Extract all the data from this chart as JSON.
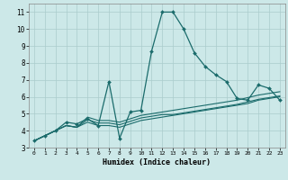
{
  "xlabel": "Humidex (Indice chaleur)",
  "background_color": "#cce8e8",
  "grid_color": "#aacccc",
  "line_color": "#1a6b6b",
  "xlim": [
    -0.5,
    23.5
  ],
  "ylim": [
    3,
    11.5
  ],
  "yticks": [
    3,
    4,
    5,
    6,
    7,
    8,
    9,
    10,
    11
  ],
  "xticks": [
    0,
    1,
    2,
    3,
    4,
    5,
    6,
    7,
    8,
    9,
    10,
    11,
    12,
    13,
    14,
    15,
    16,
    17,
    18,
    19,
    20,
    21,
    22,
    23
  ],
  "series": [
    [
      3.4,
      3.7,
      4.0,
      4.5,
      4.4,
      4.7,
      4.3,
      6.9,
      3.55,
      5.1,
      5.2,
      8.7,
      11.0,
      11.0,
      10.0,
      8.6,
      7.8,
      7.3,
      6.9,
      5.9,
      5.8,
      6.7,
      6.5,
      5.8
    ],
    [
      3.4,
      3.7,
      4.0,
      4.3,
      4.2,
      4.8,
      4.6,
      4.6,
      4.5,
      4.7,
      4.9,
      5.0,
      5.1,
      5.2,
      5.3,
      5.4,
      5.5,
      5.6,
      5.7,
      5.8,
      5.95,
      6.1,
      6.2,
      6.3
    ],
    [
      3.4,
      3.7,
      4.0,
      4.3,
      4.2,
      4.65,
      4.45,
      4.45,
      4.35,
      4.55,
      4.75,
      4.85,
      4.95,
      4.95,
      5.05,
      5.15,
      5.25,
      5.35,
      5.45,
      5.55,
      5.7,
      5.85,
      5.95,
      6.05
    ],
    [
      3.4,
      3.7,
      4.0,
      4.3,
      4.2,
      4.5,
      4.3,
      4.3,
      4.2,
      4.4,
      4.6,
      4.7,
      4.8,
      4.9,
      5.0,
      5.1,
      5.2,
      5.3,
      5.4,
      5.5,
      5.6,
      5.8,
      5.9,
      6.0
    ]
  ]
}
